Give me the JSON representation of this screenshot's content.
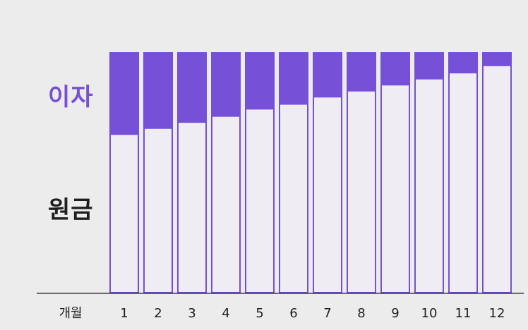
{
  "chart_data": {
    "type": "bar",
    "stacked": true,
    "xlabel": "개월",
    "categories": [
      "1",
      "2",
      "3",
      "4",
      "5",
      "6",
      "7",
      "8",
      "9",
      "10",
      "11",
      "12"
    ],
    "series": [
      {
        "name": "원금",
        "values": [
          66,
          68.5,
          71,
          73.5,
          76.5,
          78.5,
          81.5,
          84,
          86.5,
          89,
          91.5,
          94.5
        ]
      },
      {
        "name": "이자",
        "values": [
          34,
          31.5,
          29,
          26.5,
          23.5,
          21.5,
          18.5,
          16,
          13.5,
          11,
          8.5,
          5.5
        ]
      }
    ],
    "ylim": [
      0,
      100
    ],
    "grid": false,
    "legend": "left",
    "colors": {
      "interest": "#7650d6",
      "principal_fill": "#efedf3",
      "principal_outline": "#7650d6",
      "axis": "#1e1e1e",
      "background": "#ececec"
    }
  }
}
